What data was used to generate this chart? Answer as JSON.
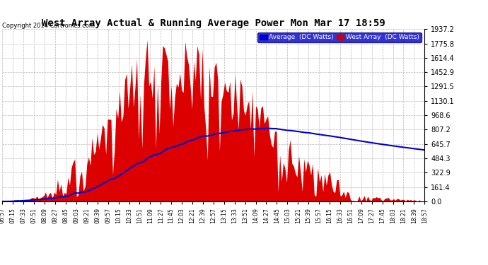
{
  "title": "West Array Actual & Running Average Power Mon Mar 17 18:59",
  "copyright": "Copyright 2014 Cartronics.com",
  "legend_labels": [
    "Average  (DC Watts)",
    "West Array  (DC Watts)"
  ],
  "legend_colors": [
    "#0000cc",
    "#cc0000"
  ],
  "ylabel_right_values": [
    0.0,
    161.4,
    322.9,
    484.3,
    645.7,
    807.2,
    968.6,
    1130.1,
    1291.5,
    1452.9,
    1614.4,
    1775.8,
    1937.2
  ],
  "ymax": 1937.2,
  "ymin": 0.0,
  "background_color": "#ffffff",
  "plot_bg": "#ffffff",
  "grid_color": "#bbbbbb",
  "bar_color": "#dd0000",
  "line_color": "#0000cc",
  "x_tick_labels": [
    "06:57",
    "07:15",
    "07:33",
    "07:51",
    "08:09",
    "08:27",
    "08:45",
    "09:03",
    "09:21",
    "09:39",
    "09:57",
    "10:15",
    "10:33",
    "10:51",
    "11:09",
    "11:27",
    "11:45",
    "12:03",
    "12:21",
    "12:39",
    "12:57",
    "13:15",
    "13:33",
    "13:51",
    "14:09",
    "14:27",
    "14:45",
    "15:03",
    "15:21",
    "15:39",
    "15:57",
    "16:15",
    "16:33",
    "16:51",
    "17:09",
    "17:27",
    "17:45",
    "18:03",
    "18:21",
    "18:39",
    "18:57"
  ]
}
